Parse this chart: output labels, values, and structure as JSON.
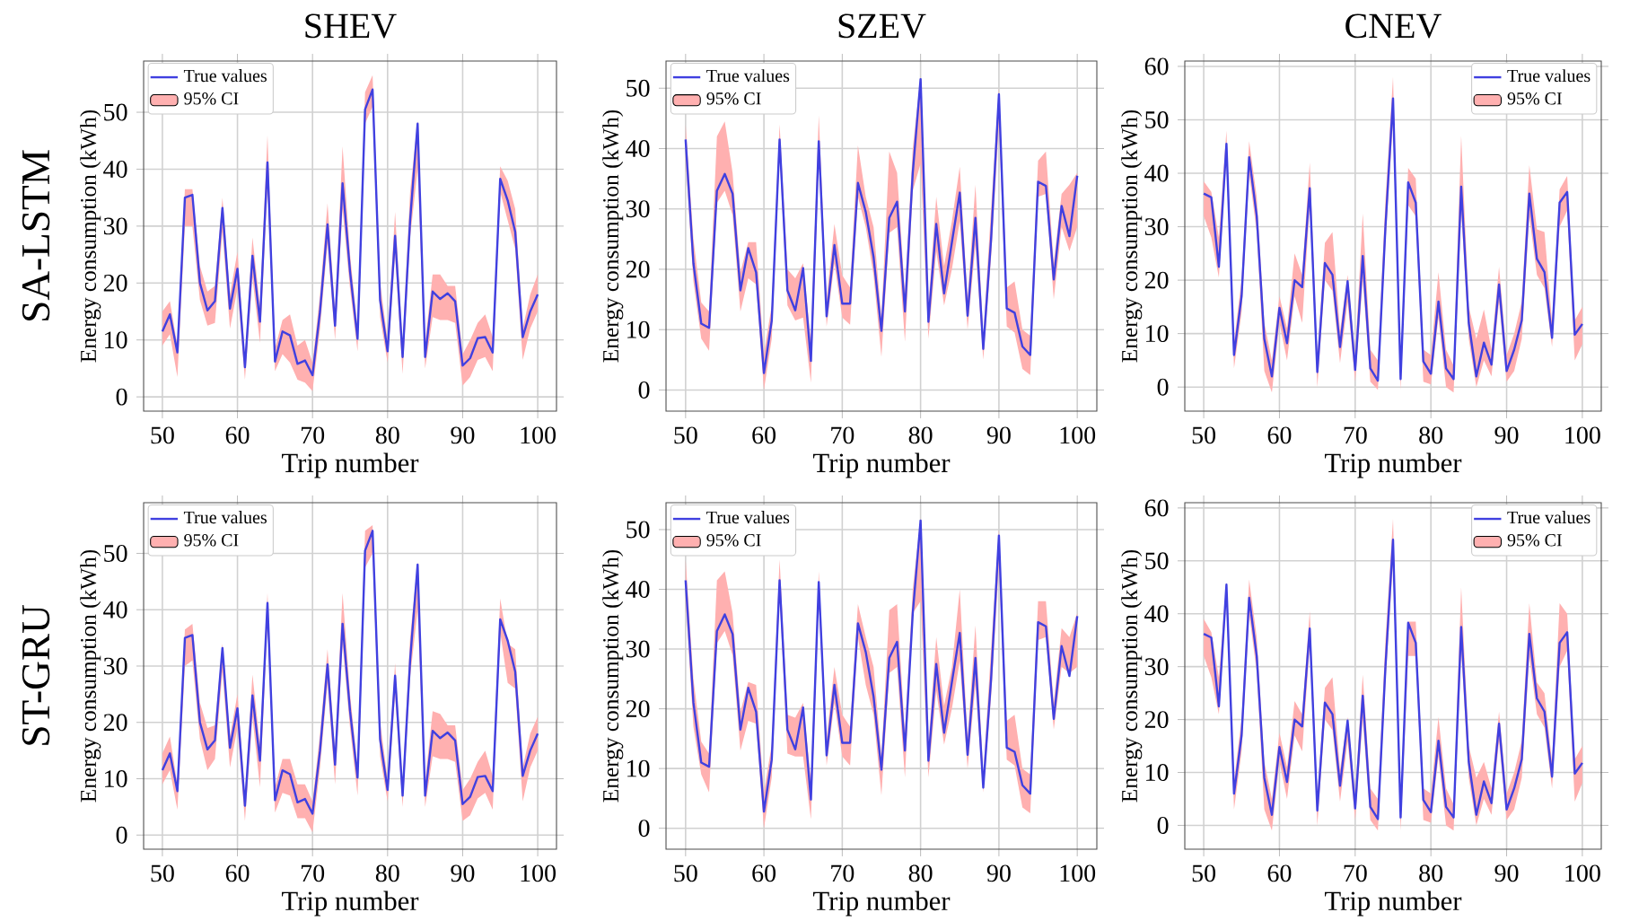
{
  "chart_data": [
    {
      "type": "line",
      "title": "SHEV",
      "xlabel": "Trip number",
      "ylabel": "Energy consumption (kWh)",
      "annotations": [
        "SA-LSTM"
      ],
      "xlim": [
        47.5,
        102.5
      ],
      "ylim": [
        -2.5,
        59
      ],
      "xticks": [
        50,
        60,
        70,
        80,
        90,
        100
      ],
      "yticks": [
        0,
        10,
        20,
        30,
        40,
        50
      ],
      "grid": true,
      "legend": "top left",
      "x": [
        50,
        51,
        52,
        53,
        54,
        55,
        56,
        57,
        58,
        59,
        60,
        61,
        62,
        63,
        64,
        65,
        66,
        67,
        68,
        69,
        70,
        71,
        72,
        73,
        74,
        75,
        76,
        77,
        78,
        79,
        80,
        81,
        82,
        83,
        84,
        85,
        86,
        87,
        88,
        89,
        90,
        91,
        92,
        93,
        94,
        95,
        96,
        97,
        98,
        99,
        100
      ],
      "series": [
        {
          "name": "True values",
          "type": "line",
          "color": "#4040e0",
          "values": [
            11.5,
            14.5,
            7.8,
            35,
            35.5,
            20,
            15.2,
            16.8,
            33.2,
            15.5,
            22.5,
            5.2,
            24.8,
            13.2,
            41.2,
            6.2,
            11.5,
            10.8,
            5.8,
            6.4,
            3.8,
            15,
            30.3,
            12.5,
            37.5,
            22,
            10.2,
            50.5,
            54,
            17,
            8,
            28.3,
            7,
            31,
            48,
            7,
            18.5,
            17.2,
            18.2,
            16.8,
            5.5,
            6.8,
            10.3,
            10.5,
            7.8,
            38.3,
            34.5,
            29,
            10.5,
            15,
            18
          ]
        },
        {
          "name": "95% CI",
          "type": "area",
          "color": "#ffb0b0",
          "values": [
            null,
            null,
            null,
            null,
            null,
            null,
            null,
            null,
            null,
            null,
            null,
            null,
            null,
            null,
            null,
            null,
            null,
            null,
            null,
            null,
            null,
            null,
            null,
            null,
            null,
            null,
            null,
            null,
            null,
            null,
            null,
            null,
            null,
            null,
            null,
            null,
            null,
            null,
            null,
            null,
            null,
            null,
            null,
            null,
            null,
            null,
            null,
            null,
            null,
            null,
            null
          ],
          "lower": [
            9,
            11,
            3.5,
            30,
            30,
            17,
            12.5,
            13,
            29,
            12,
            19,
            3,
            21,
            9.5,
            37,
            4.5,
            7.5,
            6,
            3,
            2.5,
            1,
            12,
            27,
            10,
            33,
            19,
            8,
            48,
            51,
            14,
            6,
            25,
            4,
            28,
            40,
            5,
            14,
            13.5,
            13.5,
            13,
            2,
            3.5,
            6.5,
            7,
            4.5,
            36,
            31,
            26,
            6.5,
            12,
            15
          ],
          "upper": [
            15,
            16.8,
            9,
            36.5,
            36.5,
            23,
            18.5,
            19.5,
            35,
            18,
            25.5,
            7,
            28,
            16,
            46,
            8.5,
            13.5,
            14.5,
            9,
            10,
            6,
            18,
            34,
            15,
            44,
            25,
            12,
            53.5,
            56.5,
            20,
            10,
            32.5,
            9,
            36,
            48.5,
            9.5,
            21.5,
            21.5,
            19.5,
            19.5,
            7.5,
            10,
            13,
            14.5,
            10.5,
            40.5,
            38,
            33,
            12,
            18,
            21.5
          ]
        }
      ]
    },
    {
      "type": "line",
      "title": "SZEV",
      "xlabel": "Trip number",
      "ylabel": "Energy consumption (kWh)",
      "xlim": [
        47.5,
        102.5
      ],
      "ylim": [
        -3.5,
        54.5
      ],
      "xticks": [
        50,
        60,
        70,
        80,
        90,
        100
      ],
      "yticks": [
        0,
        10,
        20,
        30,
        40,
        50
      ],
      "grid": true,
      "legend": "top left",
      "x": [
        50,
        51,
        52,
        53,
        54,
        55,
        56,
        57,
        58,
        59,
        60,
        61,
        62,
        63,
        64,
        65,
        66,
        67,
        68,
        69,
        70,
        71,
        72,
        73,
        74,
        75,
        76,
        77,
        78,
        79,
        80,
        81,
        82,
        83,
        84,
        85,
        86,
        87,
        88,
        89,
        90,
        91,
        92,
        93,
        94,
        95,
        96,
        97,
        98,
        99,
        100
      ],
      "series": [
        {
          "name": "True values",
          "type": "line",
          "color": "#4040e0",
          "values": [
            41.5,
            21,
            11,
            10.3,
            33,
            35.8,
            32.5,
            16.5,
            23.5,
            19.5,
            2.8,
            11.5,
            41.5,
            16.5,
            13.2,
            20.2,
            4.8,
            41.2,
            12.2,
            24,
            14.3,
            14.3,
            34.3,
            29.5,
            22,
            9.8,
            28.5,
            31.2,
            13,
            36,
            51.5,
            11.3,
            27.5,
            16,
            24.5,
            32.7,
            12.3,
            28.5,
            6.8,
            25,
            49,
            13.5,
            12.8,
            7.2,
            5.8,
            34.5,
            33.8,
            18.3,
            30.5,
            25.5,
            35.5
          ]
        },
        {
          "name": "95% CI",
          "type": "area",
          "color": "#ffb0b0",
          "values": [
            null,
            null,
            null,
            null,
            null,
            null,
            null,
            null,
            null,
            null,
            null,
            null,
            null,
            null,
            null,
            null,
            null,
            null,
            null,
            null,
            null,
            null,
            null,
            null,
            null,
            null,
            null,
            null,
            null,
            null,
            null,
            null,
            null,
            null,
            null,
            null,
            null,
            null,
            null,
            null,
            null,
            null,
            null,
            null,
            null,
            null,
            null,
            null,
            null,
            null,
            null
          ],
          "lower": [
            38,
            18,
            8.5,
            6.5,
            31,
            33,
            29,
            13,
            18.5,
            17.5,
            0,
            8.5,
            39,
            14,
            11.5,
            12,
            1.2,
            38,
            10.5,
            21,
            12,
            10.8,
            32,
            27,
            19,
            5.5,
            26,
            27,
            8,
            33,
            37.5,
            8.5,
            23,
            14,
            20,
            28,
            10,
            24,
            5,
            22,
            44,
            10.5,
            9.5,
            3.5,
            2.5,
            32,
            32.5,
            15,
            27,
            23,
            27
          ],
          "upper": [
            44,
            25,
            14.5,
            13,
            42,
            44.5,
            36,
            19.5,
            24.5,
            24.5,
            6,
            14,
            44,
            20,
            18.5,
            21,
            8,
            45.5,
            15,
            27.5,
            19,
            17,
            40.5,
            32,
            27,
            12,
            39.5,
            36,
            16,
            40,
            52,
            14,
            32,
            20.5,
            28,
            37,
            15,
            34,
            9,
            30,
            50,
            17,
            18,
            10,
            9,
            38,
            39.5,
            21,
            32.5,
            34,
            36
          ]
        }
      ]
    },
    {
      "type": "line",
      "title": "CNEV",
      "xlabel": "Trip number",
      "ylabel": "Energy consumption (kWh)",
      "xlim": [
        47.5,
        102.5
      ],
      "ylim": [
        -4.5,
        61
      ],
      "xticks": [
        50,
        60,
        70,
        80,
        90,
        100
      ],
      "yticks": [
        0,
        10,
        20,
        30,
        40,
        50,
        60
      ],
      "grid": true,
      "legend": "top right",
      "x": [
        50,
        51,
        52,
        53,
        54,
        55,
        56,
        57,
        58,
        59,
        60,
        61,
        62,
        63,
        64,
        65,
        66,
        67,
        68,
        69,
        70,
        71,
        72,
        73,
        74,
        75,
        76,
        77,
        78,
        79,
        80,
        81,
        82,
        83,
        84,
        85,
        86,
        87,
        88,
        89,
        90,
        91,
        92,
        93,
        94,
        95,
        96,
        97,
        98,
        99,
        100
      ],
      "series": [
        {
          "name": "True values",
          "type": "line",
          "color": "#4040e0",
          "values": [
            36.2,
            35.5,
            22.5,
            45.5,
            6,
            17,
            43,
            32,
            9,
            2,
            14.8,
            8.2,
            20,
            18.7,
            37.2,
            2.8,
            23.2,
            21,
            7.5,
            19.8,
            3.2,
            24.5,
            3.5,
            1.2,
            30,
            54,
            1.5,
            38.3,
            34.5,
            4.8,
            2.5,
            16,
            3.5,
            1.5,
            37.5,
            12,
            2,
            8.3,
            4.2,
            19.2,
            3,
            7,
            12.5,
            36.2,
            24,
            21.5,
            9.2,
            34.5,
            36.5,
            9.8,
            11.8
          ]
        },
        {
          "name": "95% CI",
          "type": "area",
          "color": "#ffb0b0",
          "values": [
            null,
            null,
            null,
            null,
            null,
            null,
            null,
            null,
            null,
            null,
            null,
            null,
            null,
            null,
            null,
            null,
            null,
            null,
            null,
            null,
            null,
            null,
            null,
            null,
            null,
            null,
            null,
            null,
            null,
            null,
            null,
            null,
            null,
            null,
            null,
            null,
            null,
            null,
            null,
            null,
            null,
            null,
            null,
            null,
            null,
            null,
            null,
            null,
            null,
            null,
            null
          ],
          "lower": [
            32,
            28,
            20.5,
            43,
            3.5,
            14,
            40,
            29,
            3,
            -1,
            12,
            5,
            17,
            12,
            34,
            0,
            20,
            18,
            4.5,
            16,
            1,
            20,
            1,
            -0.5,
            27,
            50,
            -0.5,
            34,
            32,
            1,
            0.5,
            13,
            0,
            -1,
            33,
            9,
            0,
            5,
            2,
            16,
            1,
            3,
            9,
            32,
            21,
            18.5,
            7.5,
            30,
            33,
            5,
            8
          ],
          "upper": [
            38.5,
            36.5,
            28,
            48,
            8.5,
            20,
            46,
            35.5,
            12,
            5,
            17,
            11,
            25,
            21,
            42,
            5.5,
            27,
            29,
            10.5,
            21,
            6,
            32.5,
            7,
            5,
            35,
            58,
            4,
            41,
            39,
            7,
            6,
            21.5,
            7,
            4,
            47,
            15,
            9,
            14.5,
            7,
            22.5,
            6,
            10,
            16,
            41.5,
            29.5,
            29,
            12,
            37,
            39.5,
            12.5,
            15
          ]
        }
      ]
    },
    {
      "type": "line",
      "xlabel": "Trip number",
      "ylabel": "Energy consumption (kWh)",
      "annotations": [
        "ST-GRU"
      ],
      "xlim": [
        47.5,
        102.5
      ],
      "ylim": [
        -2.5,
        59
      ],
      "xticks": [
        50,
        60,
        70,
        80,
        90,
        100
      ],
      "yticks": [
        0,
        10,
        20,
        30,
        40,
        50
      ],
      "grid": true,
      "legend": "top left",
      "x": [
        50,
        51,
        52,
        53,
        54,
        55,
        56,
        57,
        58,
        59,
        60,
        61,
        62,
        63,
        64,
        65,
        66,
        67,
        68,
        69,
        70,
        71,
        72,
        73,
        74,
        75,
        76,
        77,
        78,
        79,
        80,
        81,
        82,
        83,
        84,
        85,
        86,
        87,
        88,
        89,
        90,
        91,
        92,
        93,
        94,
        95,
        96,
        97,
        98,
        99,
        100
      ],
      "series": [
        {
          "name": "True values",
          "type": "line",
          "color": "#4040e0",
          "values": [
            11.5,
            14.5,
            7.8,
            35,
            35.5,
            20,
            15.2,
            16.8,
            33.2,
            15.5,
            22.5,
            5.2,
            24.8,
            13.2,
            41.2,
            6.2,
            11.5,
            10.8,
            5.8,
            6.4,
            3.8,
            15,
            30.3,
            12.5,
            37.5,
            22,
            10.2,
            50.5,
            54,
            17,
            8,
            28.3,
            7,
            31,
            48,
            7,
            18.5,
            17.2,
            18.2,
            16.8,
            5.5,
            6.8,
            10.3,
            10.5,
            7.8,
            38.3,
            34.5,
            29,
            10.5,
            15,
            18
          ]
        },
        {
          "name": "95% CI",
          "type": "area",
          "color": "#ffb0b0",
          "values": [
            null,
            null,
            null,
            null,
            null,
            null,
            null,
            null,
            null,
            null,
            null,
            null,
            null,
            null,
            null,
            null,
            null,
            null,
            null,
            null,
            null,
            null,
            null,
            null,
            null,
            null,
            null,
            null,
            null,
            null,
            null,
            null,
            null,
            null,
            null,
            null,
            null,
            null,
            null,
            null,
            null,
            null,
            null,
            null,
            null,
            null,
            null,
            null,
            null,
            null,
            null
          ],
          "lower": [
            9,
            11.5,
            4.5,
            30,
            31,
            17,
            11.5,
            13.5,
            29,
            12,
            19,
            2.5,
            21,
            8.5,
            38,
            4,
            7.5,
            7,
            3,
            3,
            0.5,
            12,
            27,
            9,
            34,
            19,
            7,
            47.5,
            50,
            14,
            6,
            25,
            5,
            28,
            40,
            5,
            14,
            13.5,
            13.5,
            13,
            2.5,
            3.5,
            6.5,
            7.5,
            4.5,
            36,
            27,
            26,
            6,
            12,
            15
          ],
          "upper": [
            14.5,
            17.5,
            9,
            36.5,
            37.5,
            23.5,
            19,
            19.5,
            34,
            17.5,
            25,
            7,
            28.5,
            16,
            43,
            8.5,
            13.5,
            13.5,
            9,
            9,
            6,
            18,
            33,
            15,
            43,
            25,
            12,
            54,
            55,
            20,
            10,
            30.5,
            9,
            35,
            48.5,
            9.5,
            22,
            21.5,
            19.5,
            19.5,
            8,
            10,
            13,
            15,
            10.5,
            42,
            34,
            33,
            12,
            18,
            21
          ]
        }
      ]
    },
    {
      "type": "line",
      "xlabel": "Trip number",
      "ylabel": "Energy consumption (kWh)",
      "xlim": [
        47.5,
        102.5
      ],
      "ylim": [
        -3.5,
        54.5
      ],
      "xticks": [
        50,
        60,
        70,
        80,
        90,
        100
      ],
      "yticks": [
        0,
        10,
        20,
        30,
        40,
        50
      ],
      "grid": true,
      "legend": "top left",
      "x": [
        50,
        51,
        52,
        53,
        54,
        55,
        56,
        57,
        58,
        59,
        60,
        61,
        62,
        63,
        64,
        65,
        66,
        67,
        68,
        69,
        70,
        71,
        72,
        73,
        74,
        75,
        76,
        77,
        78,
        79,
        80,
        81,
        82,
        83,
        84,
        85,
        86,
        87,
        88,
        89,
        90,
        91,
        92,
        93,
        94,
        95,
        96,
        97,
        98,
        99,
        100
      ],
      "series": [
        {
          "name": "True values",
          "type": "line",
          "color": "#4040e0",
          "values": [
            41.5,
            21,
            11,
            10.3,
            33,
            35.8,
            32.5,
            16.5,
            23.5,
            19.5,
            2.8,
            11.5,
            41.5,
            16.5,
            13.2,
            20.2,
            4.8,
            41.2,
            12.2,
            24,
            14.3,
            14.3,
            34.3,
            29.5,
            22,
            9.8,
            28.5,
            31.2,
            13,
            36,
            51.5,
            11.3,
            27.5,
            16,
            24.5,
            32.7,
            12.3,
            28.5,
            6.8,
            25,
            49,
            13.5,
            12.8,
            7.2,
            5.8,
            34.5,
            33.8,
            18.3,
            30.5,
            25.5,
            35.5
          ]
        },
        {
          "name": "95% CI",
          "type": "area",
          "color": "#ffb0b0",
          "values": [
            null,
            null,
            null,
            null,
            null,
            null,
            null,
            null,
            null,
            null,
            null,
            null,
            null,
            null,
            null,
            null,
            null,
            null,
            null,
            null,
            null,
            null,
            null,
            null,
            null,
            null,
            null,
            null,
            null,
            null,
            null,
            null,
            null,
            null,
            null,
            null,
            null,
            null,
            null,
            null,
            null,
            null,
            null,
            null,
            null,
            null,
            null,
            null,
            null,
            null,
            null
          ],
          "lower": [
            38,
            17,
            9,
            6,
            31,
            33,
            29,
            13,
            18,
            17.5,
            0,
            8.5,
            39,
            12.5,
            12,
            12,
            1.5,
            38,
            10.5,
            21,
            12,
            10.5,
            32,
            24,
            19,
            5.5,
            26,
            27,
            8.5,
            36,
            38,
            8.5,
            23,
            14,
            20,
            28,
            10,
            24,
            6,
            22,
            44,
            11.5,
            10.5,
            3.5,
            2.5,
            31.5,
            32,
            16.5,
            27,
            26,
            27
          ],
          "upper": [
            45,
            25,
            14.5,
            12.5,
            41.5,
            43,
            36,
            19.5,
            24.5,
            24,
            6,
            14,
            45,
            19,
            18.5,
            21,
            8,
            43,
            15,
            27,
            19,
            17,
            37.5,
            32,
            27,
            12,
            36.5,
            37.5,
            16,
            40,
            52,
            14,
            32,
            20.5,
            27,
            40,
            15,
            34,
            9,
            30,
            50,
            18,
            19,
            10,
            9,
            38,
            38,
            21,
            33.5,
            32,
            36
          ]
        }
      ]
    },
    {
      "type": "line",
      "xlabel": "Trip number",
      "ylabel": "Energy consumption (kWh)",
      "xlim": [
        47.5,
        102.5
      ],
      "ylim": [
        -4.5,
        61
      ],
      "xticks": [
        50,
        60,
        70,
        80,
        90,
        100
      ],
      "yticks": [
        0,
        10,
        20,
        30,
        40,
        50,
        60
      ],
      "grid": true,
      "legend": "top right",
      "x": [
        50,
        51,
        52,
        53,
        54,
        55,
        56,
        57,
        58,
        59,
        60,
        61,
        62,
        63,
        64,
        65,
        66,
        67,
        68,
        69,
        70,
        71,
        72,
        73,
        74,
        75,
        76,
        77,
        78,
        79,
        80,
        81,
        82,
        83,
        84,
        85,
        86,
        87,
        88,
        89,
        90,
        91,
        92,
        93,
        94,
        95,
        96,
        97,
        98,
        99,
        100
      ],
      "series": [
        {
          "name": "True values",
          "type": "line",
          "color": "#4040e0",
          "values": [
            36.2,
            35.5,
            22.5,
            45.5,
            6,
            17,
            43,
            32,
            9,
            2,
            14.8,
            8.2,
            20,
            18.7,
            37.2,
            2.8,
            23.2,
            21,
            7.5,
            19.8,
            3.2,
            24.5,
            3.5,
            1.2,
            30,
            54,
            1.5,
            38.3,
            34.5,
            4.8,
            2.5,
            16,
            3.5,
            1.5,
            37.5,
            12,
            2,
            8.3,
            4.2,
            19.2,
            3,
            7,
            12.5,
            36.2,
            24,
            21.5,
            9.2,
            34.5,
            36.5,
            9.8,
            11.8
          ]
        },
        {
          "name": "95% CI",
          "type": "area",
          "color": "#ffb0b0",
          "values": [
            null,
            null,
            null,
            null,
            null,
            null,
            null,
            null,
            null,
            null,
            null,
            null,
            null,
            null,
            null,
            null,
            null,
            null,
            null,
            null,
            null,
            null,
            null,
            null,
            null,
            null,
            null,
            null,
            null,
            null,
            null,
            null,
            null,
            null,
            null,
            null,
            null,
            null,
            null,
            null,
            null,
            null,
            null,
            null,
            null,
            null,
            null,
            null,
            null,
            null,
            null
          ],
          "lower": [
            32,
            28,
            21,
            43,
            3,
            14,
            40,
            29,
            3,
            -1,
            12,
            5,
            17,
            14,
            34,
            0,
            20,
            18,
            4.5,
            16,
            1,
            20,
            1,
            -1,
            27,
            50,
            -1,
            32,
            32,
            1,
            0.5,
            13,
            0,
            -1,
            33,
            9,
            0,
            5,
            2,
            16,
            1,
            3,
            9,
            32,
            21,
            18.5,
            7,
            30,
            33,
            4.5,
            8
          ],
          "upper": [
            39,
            36.5,
            28,
            46,
            8.5,
            20,
            46.5,
            35.5,
            12,
            5,
            17.5,
            11,
            23.5,
            21,
            40.5,
            5.5,
            26,
            28,
            10.5,
            20.5,
            6,
            28.5,
            7,
            5,
            35,
            58,
            4,
            38.5,
            38.5,
            7,
            6,
            20.5,
            7,
            4,
            45,
            15,
            9,
            12,
            7,
            21.5,
            6,
            10,
            16,
            42,
            27,
            25,
            12,
            42,
            40,
            12.5,
            15
          ]
        }
      ]
    }
  ]
}
